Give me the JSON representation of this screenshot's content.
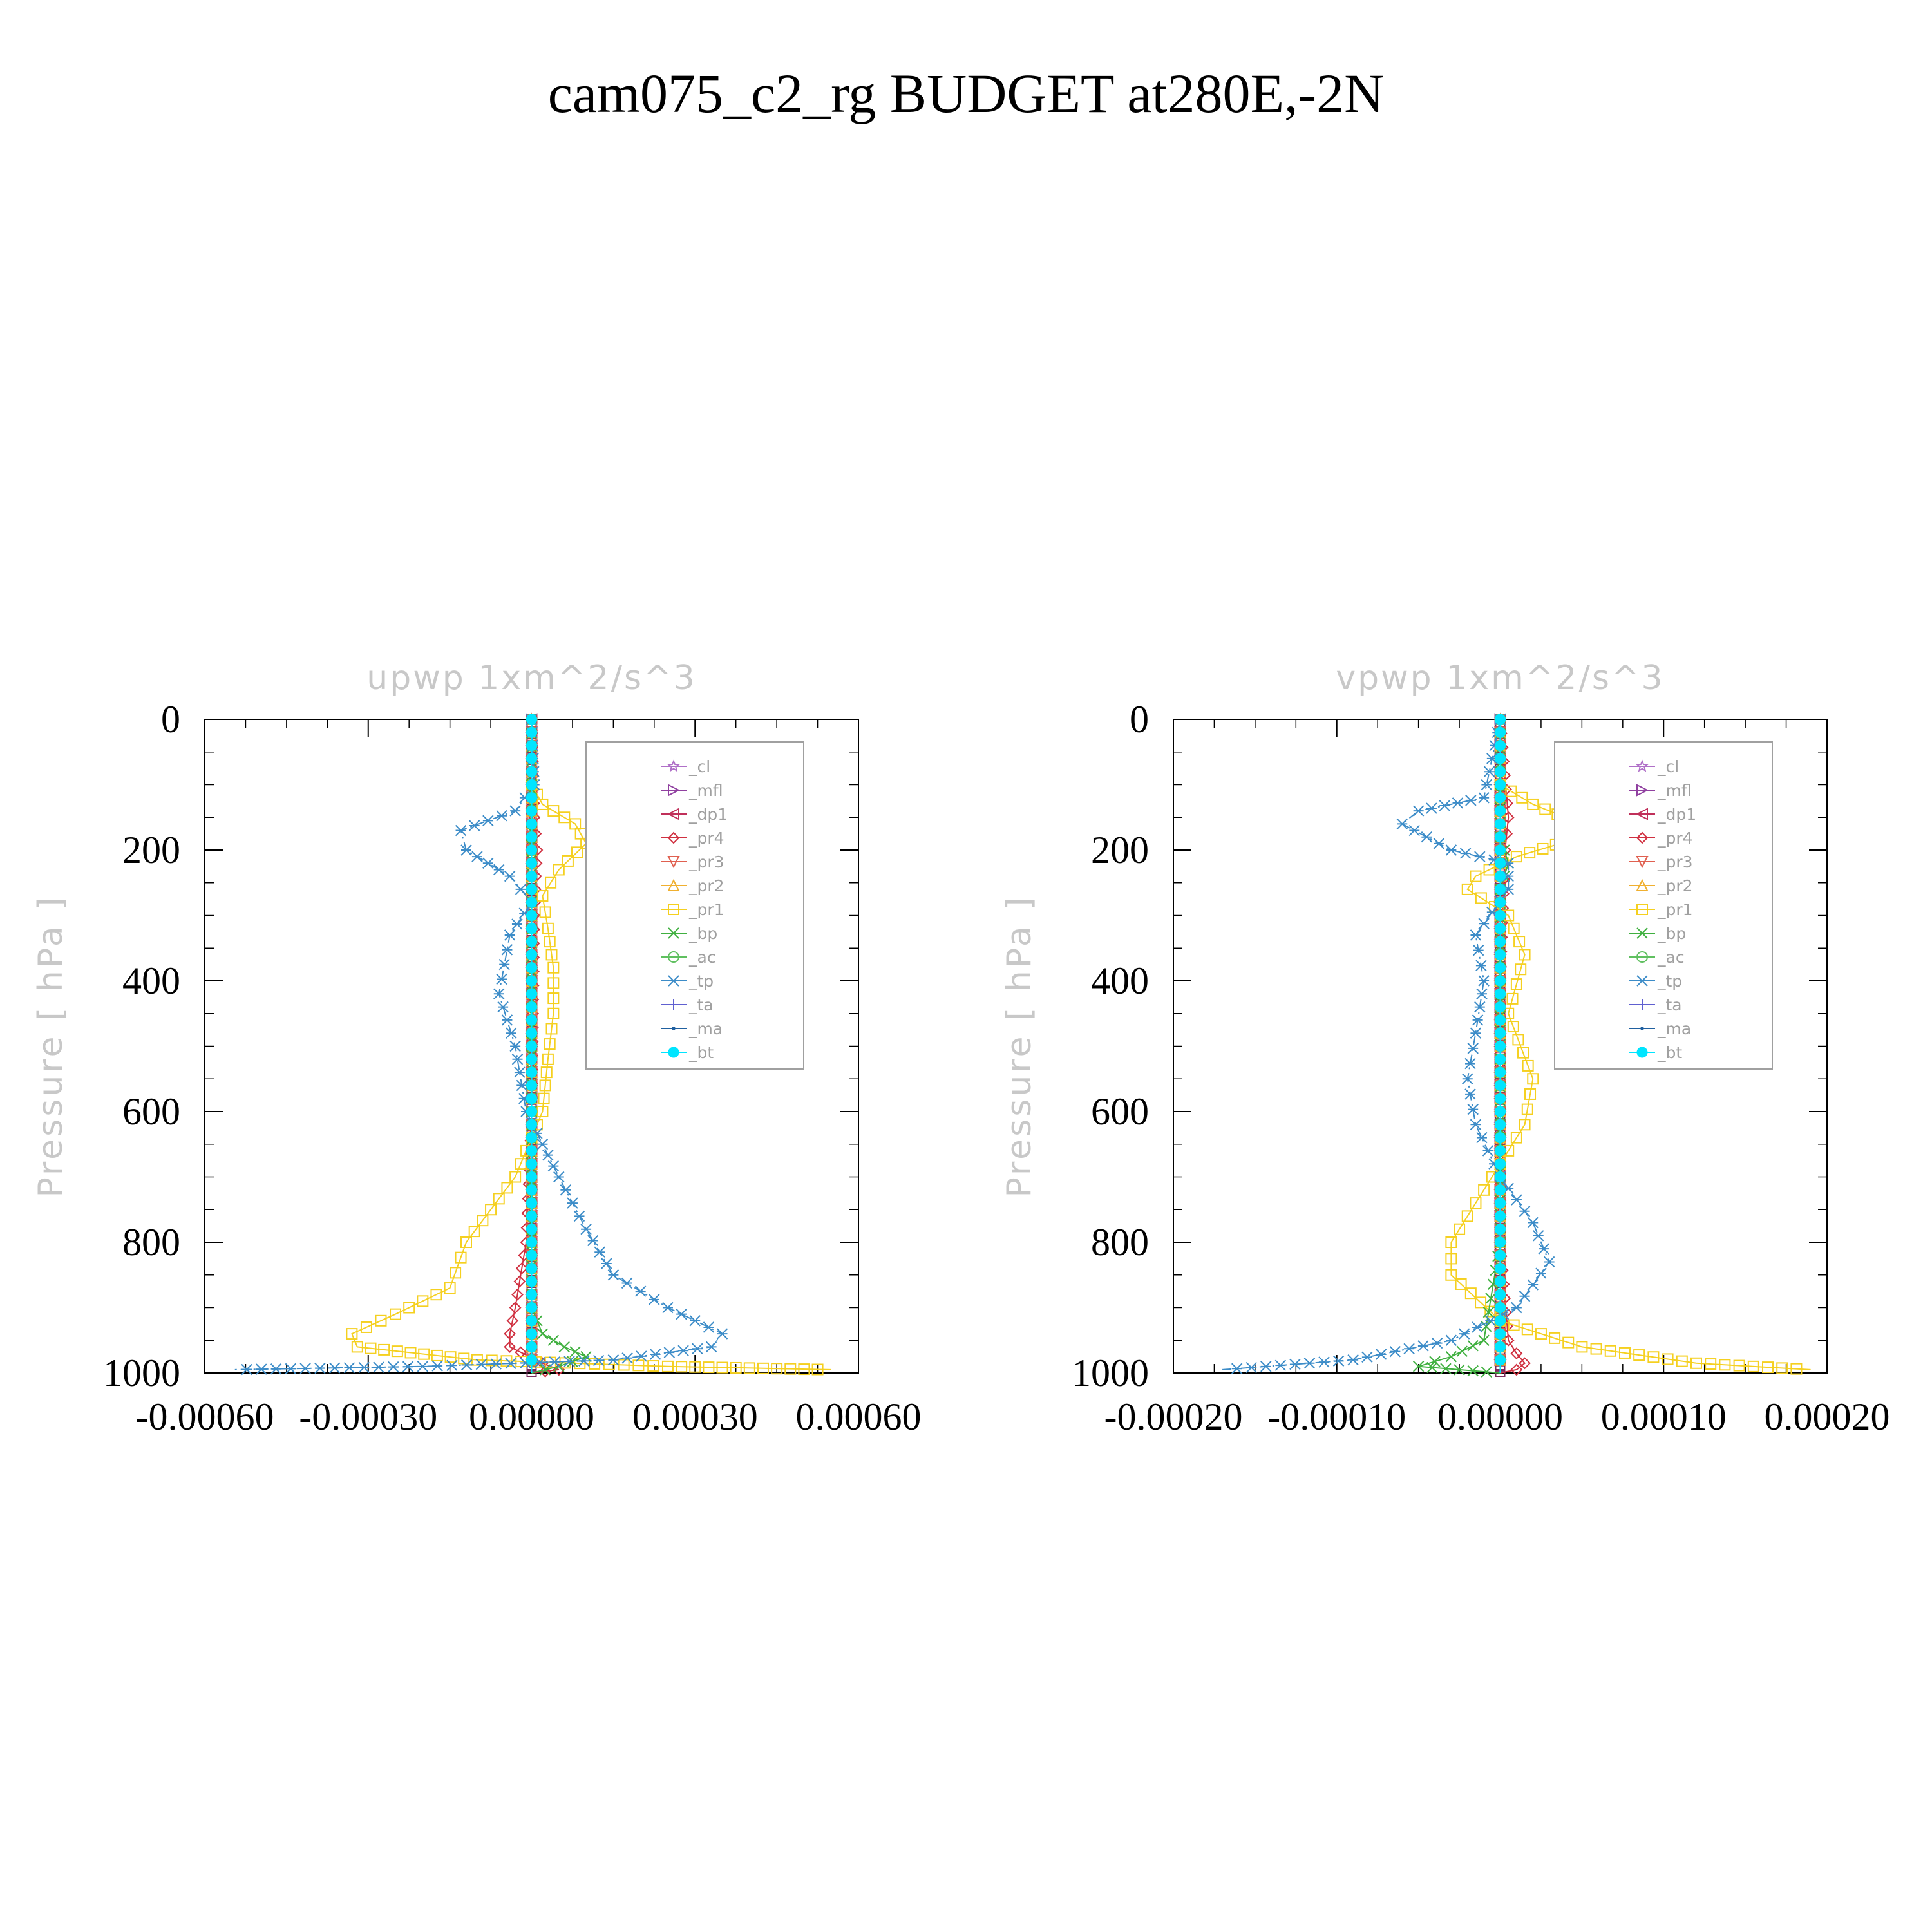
{
  "page": {
    "title": "cam075_c2_rg  BUDGET at280E,-2N"
  },
  "chart_data": [
    {
      "type": "line",
      "title": "upwp   1xm^2/s^3",
      "ylabel": "Pressure  [ hPa ]",
      "xlabel": "",
      "xlim": [
        -0.0006,
        0.0006
      ],
      "ylim": [
        1000,
        0
      ],
      "y_inverted": true,
      "xticks": [
        -0.0006,
        -0.0003,
        0.0,
        0.0003,
        0.0006
      ],
      "xtick_labels": [
        "-0.00060",
        "-0.00030",
        "0.00000",
        "0.00030",
        "0.00060"
      ],
      "yticks": [
        0,
        200,
        400,
        600,
        800,
        1000
      ],
      "ytick_labels": [
        "0",
        "200",
        "400",
        "600",
        "800",
        "1000"
      ],
      "grid": false,
      "legend_position": "upper-right",
      "series": [
        {
          "name": "_cl",
          "color": "#b070c8",
          "marker": "star",
          "dash": "",
          "x": [
            0,
            0,
            0,
            0,
            0,
            0,
            0,
            0,
            0,
            0,
            0
          ],
          "y": [
            0,
            100,
            200,
            300,
            400,
            500,
            600,
            700,
            800,
            900,
            1000
          ]
        },
        {
          "name": "_mfl",
          "color": "#9040a0",
          "marker": "tri-right",
          "dash": "",
          "x": [
            0,
            0,
            0,
            0,
            0,
            0,
            0,
            0,
            0,
            0,
            0
          ],
          "y": [
            0,
            100,
            200,
            300,
            400,
            500,
            600,
            700,
            800,
            900,
            1000
          ]
        },
        {
          "name": "_dp1",
          "color": "#c0305a",
          "marker": "tri-left",
          "dash": "",
          "x": [
            0,
            0,
            0,
            0,
            0,
            0,
            0,
            0,
            0,
            0,
            0
          ],
          "y": [
            0,
            100,
            200,
            300,
            400,
            500,
            600,
            700,
            800,
            900,
            1000
          ]
        },
        {
          "name": "_pr4",
          "color": "#d03040",
          "marker": "diamond",
          "dash": "",
          "x": [
            0,
            5e-06,
            1e-05,
            5e-06,
            0,
            -1e-05,
            -3e-05,
            -4e-05,
            -4e-05,
            2e-05,
            5e-05,
            0
          ],
          "y": [
            0,
            150,
            200,
            300,
            600,
            800,
            900,
            940,
            960,
            985,
            995,
            1000
          ]
        },
        {
          "name": "_pr3",
          "color": "#e06050",
          "marker": "tri-down",
          "dash": "",
          "x": [
            0,
            0,
            0,
            0,
            0,
            0,
            0,
            0,
            0,
            0,
            0
          ],
          "y": [
            0,
            100,
            200,
            300,
            400,
            500,
            600,
            700,
            800,
            900,
            1000
          ]
        },
        {
          "name": "_pr2",
          "color": "#f0b030",
          "marker": "tri-up",
          "dash": "",
          "x": [
            0,
            0,
            0,
            0,
            0,
            0,
            0,
            0,
            0,
            0,
            0
          ],
          "y": [
            0,
            100,
            200,
            300,
            400,
            500,
            600,
            700,
            800,
            900,
            1000
          ]
        },
        {
          "name": "_pr1",
          "color": "#f5d020",
          "marker": "square",
          "dash": "",
          "x": [
            0,
            2e-05,
            8e-05,
            0.0001,
            5e-05,
            2e-05,
            3e-05,
            4e-05,
            4e-05,
            3e-05,
            2e-05,
            -3e-05,
            -0.00012,
            -0.00015,
            -0.00025,
            -0.00033,
            -0.00032,
            -0.0001,
            0.00025,
            0.00055
          ],
          "y": [
            100,
            130,
            160,
            190,
            230,
            270,
            320,
            380,
            450,
            520,
            600,
            700,
            800,
            870,
            910,
            940,
            960,
            980,
            990,
            995
          ]
        },
        {
          "name": "_bp",
          "color": "#40b040",
          "marker": "x",
          "dash": "",
          "x": [
            0,
            0,
            0,
            0,
            2e-05,
            6e-05,
            0.0001,
            5e-05,
            0
          ],
          "y": [
            0,
            300,
            600,
            900,
            940,
            960,
            975,
            990,
            1000
          ]
        },
        {
          "name": "_ac",
          "color": "#60c060",
          "marker": "circle",
          "dash": "",
          "x": [
            0,
            0,
            0,
            0,
            0,
            0,
            0,
            0,
            0,
            0,
            0
          ],
          "y": [
            0,
            100,
            200,
            300,
            400,
            500,
            600,
            700,
            800,
            900,
            1000
          ]
        },
        {
          "name": "_tp",
          "color": "#3c8cc8",
          "marker": "asterisk",
          "dash": "14,6,3,6",
          "x": [
            0,
            5e-06,
            -3e-05,
            -0.00013,
            -0.00012,
            -4e-05,
            0,
            -4e-05,
            -6e-05,
            -3e-05,
            -1e-05,
            2e-05,
            5e-05,
            0.0001,
            0.00015,
            0.00025,
            0.00035,
            0.00033,
            0.00015,
            -0.0002,
            -0.00055
          ],
          "y": [
            0,
            100,
            140,
            170,
            200,
            240,
            280,
            330,
            420,
            500,
            600,
            650,
            700,
            780,
            850,
            900,
            940,
            960,
            980,
            990,
            995
          ]
        },
        {
          "name": "_ta",
          "color": "#6060d0",
          "marker": "plus",
          "dash": "",
          "x": [
            0,
            0,
            0,
            0,
            0,
            0,
            0,
            0,
            0,
            0,
            0
          ],
          "y": [
            0,
            100,
            200,
            300,
            400,
            500,
            600,
            700,
            800,
            900,
            1000
          ]
        },
        {
          "name": "_ma",
          "color": "#2060a0",
          "marker": "dot",
          "dash": "",
          "x": [
            0,
            0,
            0,
            0,
            0,
            0,
            0,
            0,
            0,
            0,
            0
          ],
          "y": [
            0,
            100,
            200,
            300,
            400,
            500,
            600,
            700,
            800,
            900,
            1000
          ]
        },
        {
          "name": "_bt",
          "color": "#00e5ff",
          "marker": "filled-circle",
          "dash": "",
          "x": [
            0,
            0,
            0,
            0,
            0,
            0,
            0,
            0,
            0,
            0,
            0
          ],
          "y": [
            0,
            100,
            200,
            300,
            400,
            500,
            600,
            700,
            800,
            900,
            1000
          ]
        }
      ]
    },
    {
      "type": "line",
      "title": "vpwp   1xm^2/s^3",
      "ylabel": "Pressure  [ hPa ]",
      "xlabel": "",
      "xlim": [
        -0.0002,
        0.0002
      ],
      "ylim": [
        1000,
        0
      ],
      "y_inverted": true,
      "xticks": [
        -0.0002,
        -0.0001,
        0.0,
        0.0001,
        0.0002
      ],
      "xtick_labels": [
        "-0.00020",
        "-0.00010",
        "0.00000",
        "0.00010",
        "0.00020"
      ],
      "yticks": [
        0,
        200,
        400,
        600,
        800,
        1000
      ],
      "ytick_labels": [
        "0",
        "200",
        "400",
        "600",
        "800",
        "1000"
      ],
      "grid": false,
      "legend_position": "upper-right",
      "series": [
        {
          "name": "_cl",
          "color": "#b070c8",
          "marker": "star",
          "dash": "",
          "x": [
            0,
            0,
            0,
            0,
            0,
            0,
            0,
            0,
            0,
            0,
            0
          ],
          "y": [
            0,
            100,
            200,
            300,
            400,
            500,
            600,
            700,
            800,
            900,
            1000
          ]
        },
        {
          "name": "_mfl",
          "color": "#9040a0",
          "marker": "tri-right",
          "dash": "",
          "x": [
            0,
            0,
            0,
            0,
            0,
            0,
            0,
            0,
            0,
            0,
            0
          ],
          "y": [
            0,
            100,
            200,
            300,
            400,
            500,
            600,
            700,
            800,
            900,
            1000
          ]
        },
        {
          "name": "_dp1",
          "color": "#c0305a",
          "marker": "tri-left",
          "dash": "",
          "x": [
            0,
            0,
            0,
            0,
            0,
            0,
            0,
            0,
            0,
            0,
            0
          ],
          "y": [
            0,
            100,
            200,
            300,
            400,
            500,
            600,
            700,
            800,
            900,
            1000
          ]
        },
        {
          "name": "_pr4",
          "color": "#d03040",
          "marker": "diamond",
          "dash": "",
          "x": [
            0,
            5e-06,
            3e-06,
            0,
            0,
            5e-06,
            1e-05,
            1.5e-05,
            1e-05,
            0
          ],
          "y": [
            0,
            150,
            200,
            400,
            800,
            950,
            970,
            985,
            995,
            1000
          ]
        },
        {
          "name": "_pr3",
          "color": "#e06050",
          "marker": "tri-down",
          "dash": "",
          "x": [
            0,
            0,
            0,
            0,
            0,
            0,
            0,
            0,
            0,
            0,
            0
          ],
          "y": [
            0,
            100,
            200,
            300,
            400,
            500,
            600,
            700,
            800,
            900,
            1000
          ]
        },
        {
          "name": "_pr2",
          "color": "#f0b030",
          "marker": "tri-up",
          "dash": "",
          "x": [
            0,
            0,
            0,
            0,
            0,
            0,
            0,
            0,
            0,
            0,
            0
          ],
          "y": [
            0,
            100,
            200,
            300,
            400,
            500,
            600,
            700,
            800,
            900,
            1000
          ]
        },
        {
          "name": "_pr1",
          "color": "#f5d020",
          "marker": "square",
          "dash": "",
          "x": [
            0,
            2e-05,
            5e-05,
            5e-05,
            1e-05,
            -1.5e-05,
            -2e-05,
            5e-06,
            1.5e-05,
            5e-06,
            2e-05,
            1.5e-05,
            -1e-05,
            -3e-05,
            -3e-05,
            0,
            5e-05,
            0.00012,
            0.00019
          ],
          "y": [
            100,
            130,
            160,
            180,
            210,
            240,
            260,
            300,
            360,
            450,
            550,
            620,
            720,
            800,
            850,
            920,
            960,
            985,
            995
          ]
        },
        {
          "name": "_bp",
          "color": "#40b040",
          "marker": "x",
          "dash": "",
          "x": [
            0,
            0,
            5e-06,
            0,
            0,
            -1e-05,
            -3e-05,
            -5e-05,
            0
          ],
          "y": [
            0,
            180,
            220,
            260,
            800,
            950,
            975,
            990,
            1000
          ]
        },
        {
          "name": "_ac",
          "color": "#60c060",
          "marker": "circle",
          "dash": "",
          "x": [
            0,
            0,
            0,
            0,
            0,
            0,
            0,
            0,
            0,
            0,
            0
          ],
          "y": [
            0,
            100,
            200,
            300,
            400,
            500,
            600,
            700,
            800,
            900,
            1000
          ]
        },
        {
          "name": "_tp",
          "color": "#3c8cc8",
          "marker": "asterisk",
          "dash": "14,6,3,6",
          "x": [
            0,
            -1e-05,
            -5e-05,
            -6e-05,
            -3e-05,
            5e-06,
            5e-06,
            -1.5e-05,
            -1e-05,
            -1.5e-05,
            -2e-05,
            -1.5e-05,
            0,
            2e-05,
            3e-05,
            1e-05,
            -3e-05,
            -9e-05,
            -0.00017
          ],
          "y": [
            0,
            120,
            140,
            160,
            200,
            220,
            260,
            330,
            400,
            480,
            550,
            620,
            700,
            770,
            830,
            900,
            950,
            980,
            995
          ]
        },
        {
          "name": "_ta",
          "color": "#6060d0",
          "marker": "plus",
          "dash": "",
          "x": [
            0,
            0,
            0,
            0,
            0,
            0,
            0,
            0,
            0,
            0,
            0
          ],
          "y": [
            0,
            100,
            200,
            300,
            400,
            500,
            600,
            700,
            800,
            900,
            1000
          ]
        },
        {
          "name": "_ma",
          "color": "#2060a0",
          "marker": "dot",
          "dash": "",
          "x": [
            0,
            0,
            0,
            0,
            0,
            0,
            0,
            0,
            0,
            0,
            0
          ],
          "y": [
            0,
            100,
            200,
            300,
            400,
            500,
            600,
            700,
            800,
            900,
            1000
          ]
        },
        {
          "name": "_bt",
          "color": "#00e5ff",
          "marker": "filled-circle",
          "dash": "",
          "x": [
            0,
            0,
            0,
            0,
            0,
            0,
            0,
            0,
            0,
            0,
            0
          ],
          "y": [
            0,
            100,
            200,
            300,
            400,
            500,
            600,
            700,
            800,
            900,
            1000
          ]
        }
      ]
    }
  ]
}
